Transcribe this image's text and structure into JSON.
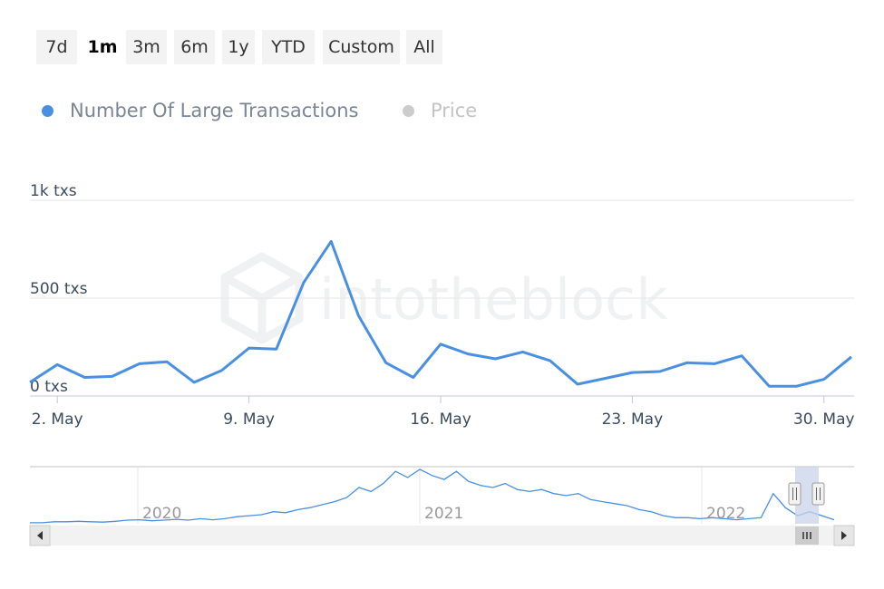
{
  "range_buttons": [
    {
      "label": "7d",
      "active": false
    },
    {
      "label": "1m",
      "active": true
    },
    {
      "label": "3m",
      "active": false
    },
    {
      "label": "6m",
      "active": false
    },
    {
      "label": "1y",
      "active": false
    },
    {
      "label": "YTD",
      "active": false
    },
    {
      "label": "Custom",
      "active": false
    },
    {
      "label": "All",
      "active": false
    }
  ],
  "legend": [
    {
      "label": "Number Of Large Transactions",
      "color": "#4a90e2",
      "active": true
    },
    {
      "label": "Price",
      "color": "#cccccc",
      "active": false
    }
  ],
  "watermark": "intotheblock",
  "navigator": {
    "year_labels": [
      "2020",
      "2021",
      "2022"
    ],
    "scroll_left_icon": "triangle-left-icon",
    "scroll_right_icon": "triangle-right-icon",
    "handle_icon": "grip-icon"
  },
  "colors": {
    "series": "#4a90e2",
    "grid": "#e6e6e6",
    "nav_mask": "#c9d3ea"
  },
  "chart_data": {
    "type": "line",
    "title": "",
    "xlabel": "",
    "ylabel": "",
    "ylim": [
      0,
      1000
    ],
    "y_ticks": [
      {
        "value": 0,
        "label": "0 txs"
      },
      {
        "value": 500,
        "label": "500 txs"
      },
      {
        "value": 1000,
        "label": "1k txs"
      }
    ],
    "x_ticks": [
      {
        "day": 2,
        "label": "2. May"
      },
      {
        "day": 9,
        "label": "9. May"
      },
      {
        "day": 16,
        "label": "16. May"
      },
      {
        "day": 23,
        "label": "23. May"
      },
      {
        "day": 30,
        "label": "30. May"
      }
    ],
    "x_range": [
      1.0,
      31.1
    ],
    "series": [
      {
        "name": "Number Of Large Transactions",
        "x": [
          1,
          2,
          3,
          4,
          5,
          6,
          7,
          8,
          9,
          10,
          11,
          12,
          13,
          14,
          15,
          16,
          17,
          18,
          19,
          20,
          21,
          22,
          23,
          24,
          25,
          26,
          27,
          28,
          29,
          30,
          31
        ],
        "values": [
          70,
          160,
          95,
          100,
          165,
          175,
          70,
          130,
          245,
          240,
          580,
          790,
          410,
          170,
          95,
          265,
          215,
          190,
          225,
          180,
          60,
          90,
          120,
          125,
          170,
          165,
          205,
          50,
          50,
          85,
          200
        ]
      }
    ],
    "navigator_series": [
      5,
      5,
      10,
      10,
      12,
      10,
      8,
      12,
      18,
      20,
      15,
      18,
      22,
      18,
      25,
      20,
      25,
      35,
      40,
      45,
      60,
      55,
      70,
      80,
      95,
      110,
      130,
      180,
      160,
      200,
      260,
      230,
      270,
      240,
      220,
      260,
      210,
      190,
      180,
      200,
      170,
      160,
      170,
      150,
      140,
      150,
      120,
      110,
      100,
      90,
      70,
      60,
      40,
      30,
      30,
      25,
      30,
      25,
      20,
      25,
      30,
      150,
      80,
      40,
      60,
      40,
      20
    ]
  }
}
